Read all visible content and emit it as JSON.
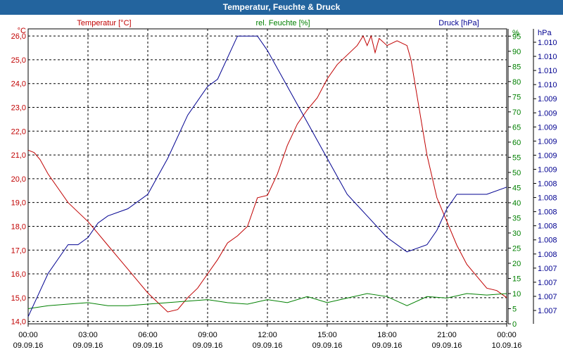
{
  "window": {
    "title": "Temperatur, Feuchte & Druck"
  },
  "chart_data": {
    "type": "line",
    "title": "Temperatur, Feuchte & Druck",
    "x_ticks": [
      {
        "time": "00:00",
        "date": "09.09.16"
      },
      {
        "time": "03:00",
        "date": "09.09.16"
      },
      {
        "time": "06:00",
        "date": "09.09.16"
      },
      {
        "time": "09:00",
        "date": "09.09.16"
      },
      {
        "time": "12:00",
        "date": "09.09.16"
      },
      {
        "time": "15:00",
        "date": "09.09.16"
      },
      {
        "time": "18:00",
        "date": "09.09.16"
      },
      {
        "time": "21:00",
        "date": "09.09.16"
      },
      {
        "time": "00:00",
        "date": "10.09.16"
      }
    ],
    "x_range_hours": [
      0,
      24
    ],
    "axes": {
      "temperature": {
        "label": "Temperatur [°C]",
        "unit": "°C",
        "color": "#c00000",
        "range": [
          13.9,
          26.3
        ],
        "ticks": [
          "14,0",
          "15,0",
          "16,0",
          "17,0",
          "18,0",
          "19,0",
          "20,0",
          "21,0",
          "22,0",
          "23,0",
          "24,0",
          "25,0",
          "26,0"
        ]
      },
      "humidity": {
        "label": "rel. Feuchte [%]",
        "unit": "%",
        "color": "#008000",
        "range": [
          0,
          97.4
        ],
        "ticks": [
          "0",
          "5",
          "10",
          "15",
          "20",
          "25",
          "30",
          "35",
          "40",
          "45",
          "50",
          "55",
          "60",
          "65",
          "70",
          "75",
          "80",
          "85",
          "90",
          "95"
        ]
      },
      "pressure": {
        "label": "Druck [hPa]",
        "unit": "hPa",
        "color": "#000090",
        "range": [
          1006.5,
          1010.6
        ],
        "ticks": [
          "1.007",
          "1.007",
          "1.007",
          "1.007",
          "1.008",
          "1.008",
          "1.008",
          "1.008",
          "1.008",
          "1.008",
          "1.009",
          "1.009",
          "1.009",
          "1.009",
          "1.009",
          "1.009",
          "1.010",
          "1.010",
          "1.010",
          "1.010"
        ]
      }
    },
    "series": [
      {
        "name": "Temperatur",
        "axis": "temperature",
        "color": "#c00000",
        "x": [
          0,
          0.3,
          0.6,
          1,
          1.5,
          2,
          2.5,
          3,
          3.5,
          4,
          4.5,
          5,
          5.5,
          6,
          6.5,
          7,
          7.5,
          8,
          8.5,
          9,
          9.5,
          10,
          10.5,
          11,
          11.5,
          12,
          12.5,
          13,
          13.5,
          14,
          14.5,
          15,
          15.5,
          16,
          16.5,
          16.8,
          17,
          17.2,
          17.4,
          17.6,
          18,
          18.5,
          19,
          19.2,
          19.5,
          20,
          20.5,
          21,
          21.5,
          22,
          22.5,
          23,
          23.5,
          24
        ],
        "values": [
          21.2,
          21.1,
          20.8,
          20.2,
          19.6,
          19.0,
          18.6,
          18.2,
          17.7,
          17.2,
          16.7,
          16.2,
          15.7,
          15.2,
          14.8,
          14.4,
          14.5,
          15.0,
          15.4,
          16.0,
          16.6,
          17.3,
          17.6,
          18.0,
          19.2,
          19.3,
          20.2,
          21.4,
          22.3,
          22.9,
          23.4,
          24.2,
          24.8,
          25.2,
          25.6,
          26.0,
          25.6,
          26.0,
          25.3,
          25.9,
          25.6,
          25.8,
          25.6,
          25.0,
          23.5,
          21.0,
          19.2,
          18.2,
          17.2,
          16.4,
          15.9,
          15.4,
          15.3,
          15.0
        ]
      },
      {
        "name": "rel. Feuchte",
        "axis": "humidity",
        "color": "#008000",
        "x": [
          0,
          1,
          2,
          3,
          4,
          5,
          6,
          7,
          8,
          9,
          10,
          11,
          12,
          13,
          14,
          15,
          16,
          17,
          18,
          19,
          20,
          21,
          22,
          23,
          24
        ],
        "values": [
          5,
          6,
          6.5,
          7,
          6,
          6,
          6.5,
          7,
          7.5,
          8,
          7,
          6.5,
          8,
          7,
          9,
          7,
          8.5,
          10,
          9,
          6,
          9,
          8.5,
          10,
          9.5,
          10
        ]
      },
      {
        "name": "Druck",
        "axis": "pressure",
        "color": "#000090",
        "x": [
          0,
          0.5,
          1,
          1.5,
          2,
          2.5,
          3,
          3.5,
          4,
          5,
          6,
          7,
          8,
          9,
          9.5,
          10,
          10.5,
          11,
          11.5,
          12,
          13,
          14,
          15,
          16,
          17,
          18,
          19,
          20,
          20.5,
          21,
          21.5,
          22,
          23,
          24
        ],
        "values": [
          1006.6,
          1006.9,
          1007.2,
          1007.4,
          1007.6,
          1007.6,
          1007.7,
          1007.9,
          1008.0,
          1008.1,
          1008.3,
          1008.8,
          1009.4,
          1009.8,
          1009.9,
          1010.2,
          1010.5,
          1010.5,
          1010.5,
          1010.3,
          1009.8,
          1009.3,
          1008.8,
          1008.3,
          1008.0,
          1007.7,
          1007.5,
          1007.6,
          1007.8,
          1008.1,
          1008.3,
          1008.3,
          1008.3,
          1008.4
        ]
      }
    ],
    "grid": true
  }
}
